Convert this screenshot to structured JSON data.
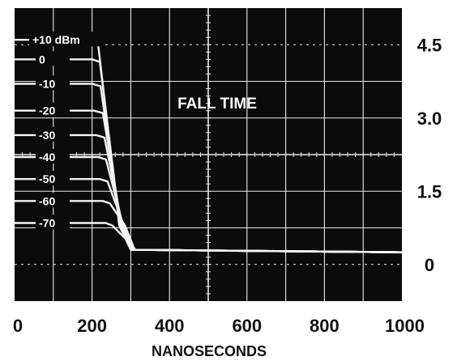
{
  "chart_data": {
    "type": "line",
    "annotation": "FALL TIME",
    "xlabel": "NANOSECONDS",
    "ylabel": "",
    "x_ticks": [
      "0",
      "200",
      "400",
      "600",
      "800",
      "1000"
    ],
    "y_ticks": [
      "0",
      "1.5",
      "3.0",
      "4.5"
    ],
    "xlim": [
      0,
      1000
    ],
    "ylim": [
      -0.75,
      5.25
    ],
    "grid": true,
    "background_color": "#0b0b0b",
    "trace_color": "#f4f4f4",
    "series": [
      {
        "name": "+10 dBm",
        "points": [
          [
            0,
            4.6
          ],
          [
            200,
            4.6
          ],
          [
            215,
            4.55
          ],
          [
            270,
            0.8
          ],
          [
            300,
            0.3
          ],
          [
            1000,
            0.25
          ]
        ]
      },
      {
        "name": "0",
        "points": [
          [
            0,
            4.2
          ],
          [
            200,
            4.2
          ],
          [
            220,
            4.15
          ],
          [
            272,
            0.8
          ],
          [
            300,
            0.3
          ],
          [
            1000,
            0.25
          ]
        ]
      },
      {
        "name": "-10",
        "points": [
          [
            0,
            3.7
          ],
          [
            200,
            3.7
          ],
          [
            222,
            3.65
          ],
          [
            273,
            0.8
          ],
          [
            300,
            0.3
          ],
          [
            1000,
            0.25
          ]
        ]
      },
      {
        "name": "-20",
        "points": [
          [
            0,
            3.15
          ],
          [
            205,
            3.15
          ],
          [
            228,
            3.1
          ],
          [
            276,
            0.8
          ],
          [
            302,
            0.3
          ],
          [
            1000,
            0.25
          ]
        ]
      },
      {
        "name": "-30",
        "points": [
          [
            0,
            2.65
          ],
          [
            210,
            2.65
          ],
          [
            232,
            2.6
          ],
          [
            278,
            0.8
          ],
          [
            304,
            0.3
          ],
          [
            1000,
            0.25
          ]
        ]
      },
      {
        "name": "-40",
        "points": [
          [
            0,
            2.2
          ],
          [
            215,
            2.2
          ],
          [
            236,
            2.15
          ],
          [
            280,
            0.8
          ],
          [
            306,
            0.3
          ],
          [
            1000,
            0.25
          ]
        ]
      },
      {
        "name": "-50",
        "points": [
          [
            0,
            1.75
          ],
          [
            220,
            1.75
          ],
          [
            240,
            1.7
          ],
          [
            282,
            0.8
          ],
          [
            308,
            0.3
          ],
          [
            1000,
            0.25
          ]
        ]
      },
      {
        "name": "-60",
        "points": [
          [
            0,
            1.3
          ],
          [
            228,
            1.3
          ],
          [
            246,
            1.25
          ],
          [
            285,
            0.8
          ],
          [
            310,
            0.3
          ],
          [
            1000,
            0.25
          ]
        ]
      },
      {
        "name": "-70",
        "points": [
          [
            0,
            0.85
          ],
          [
            235,
            0.85
          ],
          [
            252,
            0.8
          ],
          [
            290,
            0.5
          ],
          [
            312,
            0.3
          ],
          [
            1000,
            0.25
          ]
        ]
      }
    ]
  }
}
